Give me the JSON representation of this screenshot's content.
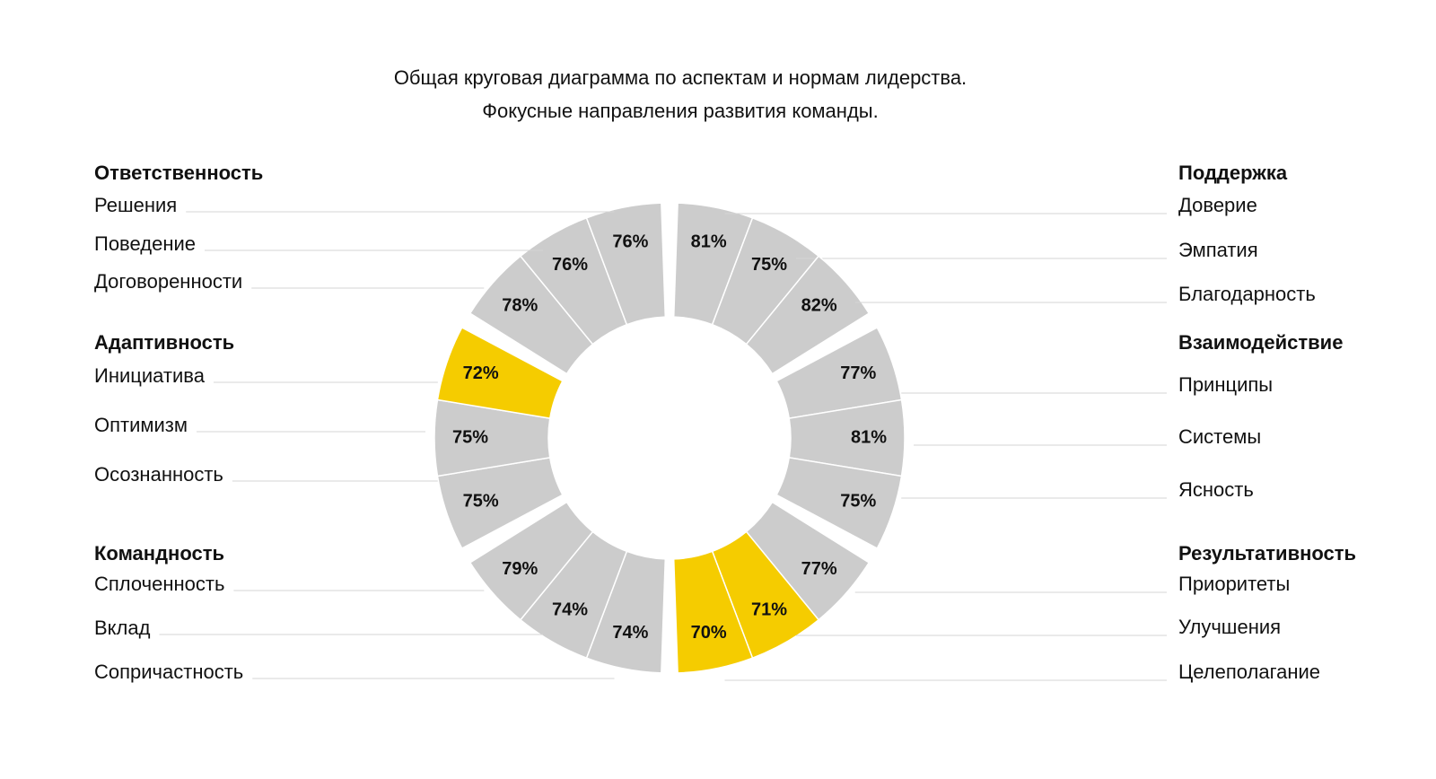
{
  "chart_data": {
    "type": "donut",
    "title": "Общая круговая диаграмма по аспектам и нормам лидерства.",
    "subtitle": "Фокусные направления развития команды.",
    "series": [
      {
        "name": "Поддержка",
        "categories": [
          "Доверие",
          "Эмпатия",
          "Благодарность"
        ],
        "values": [
          81,
          75,
          82
        ],
        "value_labels": [
          "81%",
          "75%",
          "82%"
        ],
        "colors": [
          "#cccccc",
          "#cccccc",
          "#cccccc"
        ]
      },
      {
        "name": "Взаимодействие",
        "categories": [
          "Принципы",
          "Системы",
          "Ясность"
        ],
        "values": [
          77,
          81,
          75
        ],
        "value_labels": [
          "77%",
          "81%",
          "75%"
        ],
        "colors": [
          "#cccccc",
          "#cccccc",
          "#cccccc"
        ]
      },
      {
        "name": "Результативность",
        "categories": [
          "Приоритеты",
          "Улучшения",
          "Целеполагание"
        ],
        "values": [
          77,
          71,
          70
        ],
        "value_labels": [
          "77%",
          "71%",
          "70%"
        ],
        "colors": [
          "#cccccc",
          "#f5cc00",
          "#f5cc00"
        ]
      },
      {
        "name": "Командность",
        "categories": [
          "Сопричастность",
          "Вклад",
          "Сплоченность"
        ],
        "values": [
          74,
          74,
          79
        ],
        "value_labels": [
          "74%",
          "74%",
          "79%"
        ],
        "colors": [
          "#cccccc",
          "#cccccc",
          "#cccccc"
        ]
      },
      {
        "name": "Адаптивность",
        "categories": [
          "Осознанность",
          "Оптимизм",
          "Инициатива"
        ],
        "values": [
          75,
          75,
          72
        ],
        "value_labels": [
          "75%",
          "75%",
          "72%"
        ],
        "colors": [
          "#cccccc",
          "#cccccc",
          "#f5cc00"
        ]
      },
      {
        "name": "Ответственность",
        "categories": [
          "Договоренности",
          "Поведение",
          "Решения"
        ],
        "values": [
          78,
          76,
          76
        ],
        "value_labels": [
          "78%",
          "76%",
          "76%"
        ],
        "colors": [
          "#cccccc",
          "#cccccc",
          "#cccccc"
        ]
      }
    ]
  }
}
